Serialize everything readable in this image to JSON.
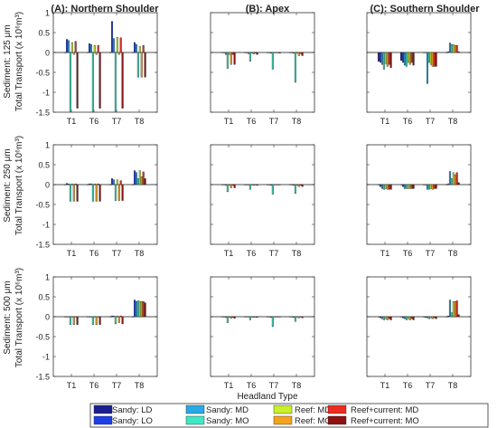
{
  "figure": {
    "column_titles": [
      "(A): Northern Shoulder",
      "(B): Apex",
      "(C): Southern Shoulder"
    ],
    "row_labels": [
      {
        "sediment": "Sediment: 125 μm",
        "transport": "Total Transport (x 10⁶m³)"
      },
      {
        "sediment": "Sediment: 250 μm",
        "transport": "Total Transport (x 10⁶m³)"
      },
      {
        "sediment": "Sediment: 500 μm",
        "transport": "Total Transport (x 10⁶m³)"
      }
    ],
    "xlabel": "Headland Type"
  },
  "colors": {
    "Sandy: LD": "#1b1f8f",
    "Sandy: LO": "#1f3fe6",
    "Sandy: MD": "#29a9e6",
    "Sandy: MO": "#3ee8c4",
    "Reef: MD": "#c9ef2a",
    "Reef: MO": "#f5a21c",
    "Reef+current: MD": "#ee2b1f",
    "Reef+current: MO": "#8e1212"
  },
  "chart_data": [
    {
      "type": "bar",
      "title": "(A): Northern Shoulder",
      "row": 0,
      "col": 0,
      "ylabel": "Total Transport (x 10⁶m³)",
      "ylim": [
        -1.5,
        1
      ],
      "yticks": [
        1,
        0.5,
        0,
        -0.5,
        -1,
        -1.5
      ],
      "categories": [
        "T1",
        "T6",
        "T7",
        "T8"
      ],
      "series": [
        {
          "name": "Sandy: LD",
          "values": [
            0,
            0,
            0,
            0
          ]
        },
        {
          "name": "Sandy: LO",
          "values": [
            0.33,
            0.22,
            0.78,
            0.25
          ]
        },
        {
          "name": "Sandy: MD",
          "values": [
            0.3,
            0.2,
            0.35,
            0.2
          ]
        },
        {
          "name": "Sandy: MO",
          "values": [
            -1.48,
            -1.48,
            -1.48,
            -0.62
          ]
        },
        {
          "name": "Reef: MD",
          "values": [
            0.25,
            0.18,
            0.38,
            0.15
          ]
        },
        {
          "name": "Reef: MO",
          "values": [
            -0.05,
            -0.05,
            -0.05,
            -0.62
          ]
        },
        {
          "name": "Reef+current: MD",
          "values": [
            0.28,
            0.18,
            0.37,
            0.18
          ]
        },
        {
          "name": "Reef+current: MO",
          "values": [
            -1.4,
            -1.4,
            -1.4,
            -0.62
          ]
        }
      ]
    },
    {
      "type": "bar",
      "title": "(B): Apex",
      "row": 0,
      "col": 1,
      "ylim": [
        -1.5,
        1
      ],
      "categories": [
        "T1",
        "T6",
        "T7",
        "T8"
      ],
      "series": [
        {
          "name": "Sandy: LD",
          "values": [
            0,
            0,
            0,
            0
          ]
        },
        {
          "name": "Sandy: LO",
          "values": [
            0,
            0,
            0,
            0
          ]
        },
        {
          "name": "Sandy: MD",
          "values": [
            -0.05,
            -0.03,
            -0.02,
            -0.02
          ]
        },
        {
          "name": "Sandy: MO",
          "values": [
            -0.4,
            -0.22,
            -0.42,
            -0.75
          ]
        },
        {
          "name": "Reef: MD",
          "values": [
            -0.05,
            -0.02,
            0,
            -0.02
          ]
        },
        {
          "name": "Reef: MO",
          "values": [
            -0.3,
            -0.04,
            -0.01,
            -0.08
          ]
        },
        {
          "name": "Reef+current: MD",
          "values": [
            -0.05,
            -0.02,
            0,
            -0.03
          ]
        },
        {
          "name": "Reef+current: MO",
          "values": [
            -0.3,
            -0.05,
            -0.02,
            -0.08
          ]
        }
      ]
    },
    {
      "type": "bar",
      "title": "(C): Southern Shoulder",
      "row": 0,
      "col": 2,
      "ylim": [
        -1.5,
        1
      ],
      "categories": [
        "T1",
        "T6",
        "T7",
        "T8"
      ],
      "series": [
        {
          "name": "Sandy: LD",
          "values": [
            -0.22,
            -0.2,
            0,
            0
          ]
        },
        {
          "name": "Sandy: LO",
          "values": [
            -0.25,
            -0.25,
            0,
            0.02
          ]
        },
        {
          "name": "Sandy: MD",
          "values": [
            -0.3,
            -0.32,
            -0.78,
            0.24
          ]
        },
        {
          "name": "Sandy: MO",
          "values": [
            -0.42,
            -0.35,
            -0.25,
            0.2
          ]
        },
        {
          "name": "Reef: MD",
          "values": [
            -0.28,
            -0.25,
            -0.3,
            0.2
          ]
        },
        {
          "name": "Reef: MO",
          "values": [
            -0.35,
            -0.3,
            -0.35,
            0.18
          ]
        },
        {
          "name": "Reef+current: MD",
          "values": [
            -0.3,
            -0.25,
            -0.35,
            0.18
          ]
        },
        {
          "name": "Reef+current: MO",
          "values": [
            -0.38,
            -0.32,
            -0.35,
            0.02
          ]
        }
      ]
    },
    {
      "type": "bar",
      "title": "",
      "row": 1,
      "col": 0,
      "ylabel": "Total Transport (x 10⁶m³)",
      "ylim": [
        -1.5,
        1
      ],
      "yticks": [
        1,
        0.5,
        0,
        -0.5,
        -1,
        -1.5
      ],
      "categories": [
        "T1",
        "T6",
        "T7",
        "T8"
      ],
      "series": [
        {
          "name": "Sandy: LD",
          "values": [
            0,
            0,
            0,
            0
          ]
        },
        {
          "name": "Sandy: LO",
          "values": [
            0.03,
            0.02,
            0.15,
            0.35
          ]
        },
        {
          "name": "Sandy: MD",
          "values": [
            0.02,
            0.02,
            0.12,
            0.3
          ]
        },
        {
          "name": "Sandy: MO",
          "values": [
            -0.42,
            -0.42,
            -0.4,
            0.15
          ]
        },
        {
          "name": "Reef: MD",
          "values": [
            0.02,
            0.02,
            0.12,
            0.35
          ]
        },
        {
          "name": "Reef: MO",
          "values": [
            -0.42,
            -0.42,
            -0.4,
            0.2
          ]
        },
        {
          "name": "Reef+current: MD",
          "values": [
            0.02,
            0.02,
            0.1,
            0.32
          ]
        },
        {
          "name": "Reef+current: MO",
          "values": [
            -0.42,
            -0.42,
            -0.4,
            0.15
          ]
        }
      ]
    },
    {
      "type": "bar",
      "title": "",
      "row": 1,
      "col": 1,
      "ylim": [
        -1.5,
        1
      ],
      "categories": [
        "T1",
        "T6",
        "T7",
        "T8"
      ],
      "series": [
        {
          "name": "Sandy: LD",
          "values": [
            0,
            0,
            0,
            0
          ]
        },
        {
          "name": "Sandy: LO",
          "values": [
            0,
            0,
            0,
            0
          ]
        },
        {
          "name": "Sandy: MD",
          "values": [
            -0.02,
            -0.01,
            -0.02,
            -0.02
          ]
        },
        {
          "name": "Sandy: MO",
          "values": [
            -0.18,
            -0.12,
            -0.24,
            -0.22
          ]
        },
        {
          "name": "Reef: MD",
          "values": [
            -0.02,
            -0.01,
            0,
            -0.02
          ]
        },
        {
          "name": "Reef: MO",
          "values": [
            -0.08,
            -0.02,
            -0.01,
            -0.05
          ]
        },
        {
          "name": "Reef+current: MD",
          "values": [
            -0.02,
            -0.01,
            0,
            -0.02
          ]
        },
        {
          "name": "Reef+current: MO",
          "values": [
            -0.08,
            -0.02,
            -0.01,
            -0.05
          ]
        }
      ]
    },
    {
      "type": "bar",
      "title": "",
      "row": 1,
      "col": 2,
      "ylim": [
        -1.5,
        1
      ],
      "categories": [
        "T1",
        "T6",
        "T7",
        "T8"
      ],
      "series": [
        {
          "name": "Sandy: LD",
          "values": [
            0,
            0,
            0,
            0
          ]
        },
        {
          "name": "Sandy: LO",
          "values": [
            -0.05,
            -0.05,
            0,
            0.02
          ]
        },
        {
          "name": "Sandy: MD",
          "values": [
            -0.1,
            -0.1,
            -0.12,
            0.33
          ]
        },
        {
          "name": "Sandy: MO",
          "values": [
            -0.12,
            -0.1,
            -0.12,
            0.15
          ]
        },
        {
          "name": "Reef: MD",
          "values": [
            -0.1,
            -0.1,
            -0.1,
            0.3
          ]
        },
        {
          "name": "Reef: MO",
          "values": [
            -0.12,
            -0.1,
            -0.12,
            0.25
          ]
        },
        {
          "name": "Reef+current: MD",
          "values": [
            -0.12,
            -0.1,
            -0.1,
            0.3
          ]
        },
        {
          "name": "Reef+current: MO",
          "values": [
            -0.12,
            -0.1,
            -0.1,
            0.05
          ]
        }
      ]
    },
    {
      "type": "bar",
      "title": "",
      "row": 2,
      "col": 0,
      "ylabel": "Total Transport (x 10⁶m³)",
      "ylim": [
        -1.5,
        1
      ],
      "yticks": [
        1,
        0.5,
        0,
        -0.5,
        -1,
        -1.5
      ],
      "categories": [
        "T1",
        "T6",
        "T7",
        "T8"
      ],
      "series": [
        {
          "name": "Sandy: LD",
          "values": [
            0,
            0,
            0,
            0
          ]
        },
        {
          "name": "Sandy: LO",
          "values": [
            0,
            0,
            0.02,
            0.42
          ]
        },
        {
          "name": "Sandy: MD",
          "values": [
            0,
            0,
            0.02,
            0.38
          ]
        },
        {
          "name": "Sandy: MO",
          "values": [
            -0.2,
            -0.2,
            -0.18,
            0.4
          ]
        },
        {
          "name": "Reef: MD",
          "values": [
            0,
            0,
            0.02,
            0.38
          ]
        },
        {
          "name": "Reef: MO",
          "values": [
            -0.2,
            -0.2,
            -0.15,
            0.38
          ]
        },
        {
          "name": "Reef+current: MD",
          "values": [
            0,
            0,
            0.02,
            0.38
          ]
        },
        {
          "name": "Reef+current: MO",
          "values": [
            -0.2,
            -0.2,
            -0.18,
            0.35
          ]
        }
      ]
    },
    {
      "type": "bar",
      "title": "",
      "row": 2,
      "col": 1,
      "ylim": [
        -1.5,
        1
      ],
      "categories": [
        "T1",
        "T6",
        "T7",
        "T8"
      ],
      "series": [
        {
          "name": "Sandy: LD",
          "values": [
            0,
            0,
            0,
            0
          ]
        },
        {
          "name": "Sandy: LO",
          "values": [
            0,
            0,
            0,
            0
          ]
        },
        {
          "name": "Sandy: MD",
          "values": [
            -0.02,
            -0.01,
            -0.02,
            -0.02
          ]
        },
        {
          "name": "Sandy: MO",
          "values": [
            -0.15,
            -0.08,
            -0.25,
            -0.12
          ]
        },
        {
          "name": "Reef: MD",
          "values": [
            -0.02,
            -0.01,
            0,
            -0.01
          ]
        },
        {
          "name": "Reef: MO",
          "values": [
            -0.04,
            -0.02,
            -0.01,
            -0.03
          ]
        },
        {
          "name": "Reef+current: MD",
          "values": [
            -0.02,
            -0.01,
            0,
            -0.01
          ]
        },
        {
          "name": "Reef+current: MO",
          "values": [
            -0.04,
            -0.02,
            -0.01,
            -0.03
          ]
        }
      ]
    },
    {
      "type": "bar",
      "title": "",
      "row": 2,
      "col": 2,
      "ylim": [
        -1.5,
        1
      ],
      "categories": [
        "T1",
        "T6",
        "T7",
        "T8"
      ],
      "series": [
        {
          "name": "Sandy: LD",
          "values": [
            0,
            0,
            0,
            0
          ]
        },
        {
          "name": "Sandy: LO",
          "values": [
            -0.03,
            -0.03,
            -0.02,
            0.02
          ]
        },
        {
          "name": "Sandy: MD",
          "values": [
            -0.05,
            -0.05,
            -0.03,
            0.42
          ]
        },
        {
          "name": "Sandy: MO",
          "values": [
            -0.08,
            -0.08,
            -0.05,
            0.1
          ]
        },
        {
          "name": "Reef: MD",
          "values": [
            -0.05,
            -0.05,
            -0.03,
            0.38
          ]
        },
        {
          "name": "Reef: MO",
          "values": [
            -0.08,
            -0.08,
            -0.05,
            0.38
          ]
        },
        {
          "name": "Reef+current: MD",
          "values": [
            -0.05,
            -0.05,
            -0.03,
            0.4
          ]
        },
        {
          "name": "Reef+current: MO",
          "values": [
            -0.08,
            -0.08,
            -0.05,
            0.05
          ]
        }
      ]
    }
  ],
  "legend": {
    "placement": "bottom",
    "items": [
      "Sandy: LD",
      "Sandy: MD",
      "Reef: MD",
      "Reef+current: MD",
      "Sandy: LO",
      "Sandy: MO",
      "Reef: MO",
      "Reef+current: MO"
    ]
  }
}
